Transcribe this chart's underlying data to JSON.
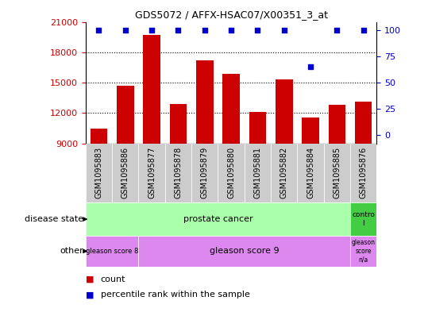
{
  "title": "GDS5072 / AFFX-HSAC07/X00351_3_at",
  "samples": [
    "GSM1095883",
    "GSM1095886",
    "GSM1095877",
    "GSM1095878",
    "GSM1095879",
    "GSM1095880",
    "GSM1095881",
    "GSM1095882",
    "GSM1095884",
    "GSM1095885",
    "GSM1095876"
  ],
  "counts": [
    10500,
    14700,
    19700,
    12900,
    17200,
    15900,
    12100,
    15300,
    11600,
    12800,
    13100
  ],
  "percentiles": [
    100,
    100,
    100,
    100,
    100,
    100,
    100,
    100,
    65,
    100,
    100
  ],
  "ymin": 9000,
  "ymax": 21000,
  "yticks": [
    9000,
    12000,
    15000,
    18000,
    21000
  ],
  "right_yticks": [
    0,
    25,
    50,
    75,
    100
  ],
  "bar_color": "#cc0000",
  "dot_color": "#0000cc",
  "ds_prostate_color": "#aaffaa",
  "ds_control_color": "#44cc44",
  "other_g8_color": "#dd88ee",
  "other_g9_color": "#dd88ee",
  "other_gna_color": "#dd88ee",
  "xtick_bg": "#cccccc",
  "legend_count_color": "#cc0000",
  "legend_pct_color": "#0000cc"
}
